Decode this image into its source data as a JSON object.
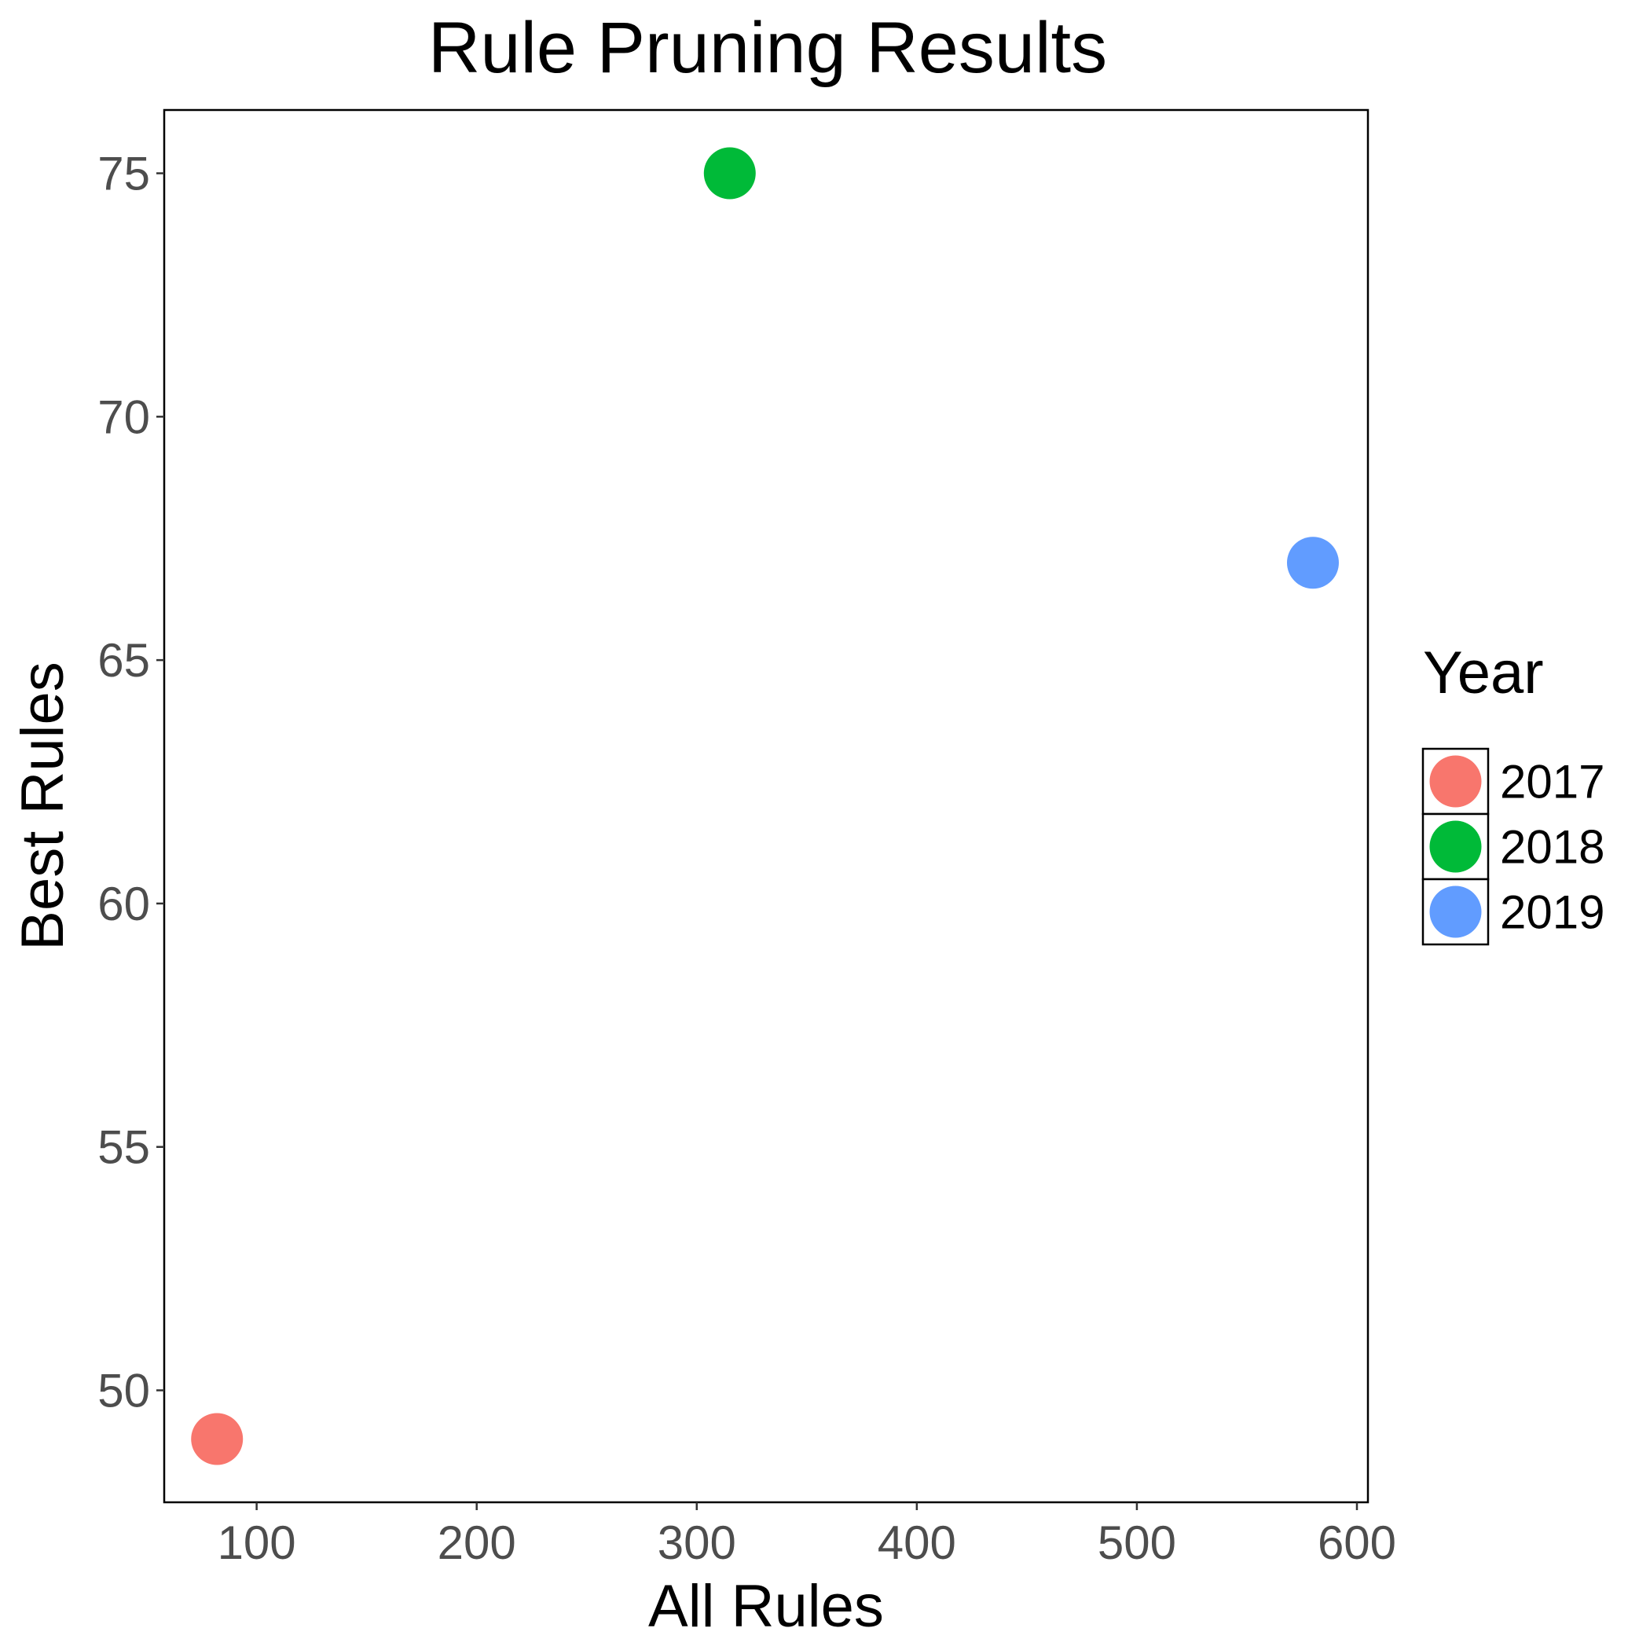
{
  "chart_data": {
    "type": "scatter",
    "title": "Rule Pruning Results",
    "xlabel": "All Rules",
    "ylabel": "Best Rules",
    "xlim": [
      58,
      605
    ],
    "ylim": [
      47.7,
      76.3
    ],
    "xticks": [
      100,
      200,
      300,
      400,
      500,
      600
    ],
    "yticks": [
      50,
      55,
      60,
      65,
      70,
      75
    ],
    "grid": false,
    "legend": {
      "title": "Year",
      "position": "right",
      "entries": [
        "2017",
        "2018",
        "2019"
      ]
    },
    "series": [
      {
        "name": "2017",
        "color": "#F8766D",
        "x": [
          82
        ],
        "y": [
          49
        ]
      },
      {
        "name": "2018",
        "color": "#00BA38",
        "x": [
          315
        ],
        "y": [
          75
        ]
      },
      {
        "name": "2019",
        "color": "#619CFF",
        "x": [
          580
        ],
        "y": [
          67
        ]
      }
    ]
  }
}
